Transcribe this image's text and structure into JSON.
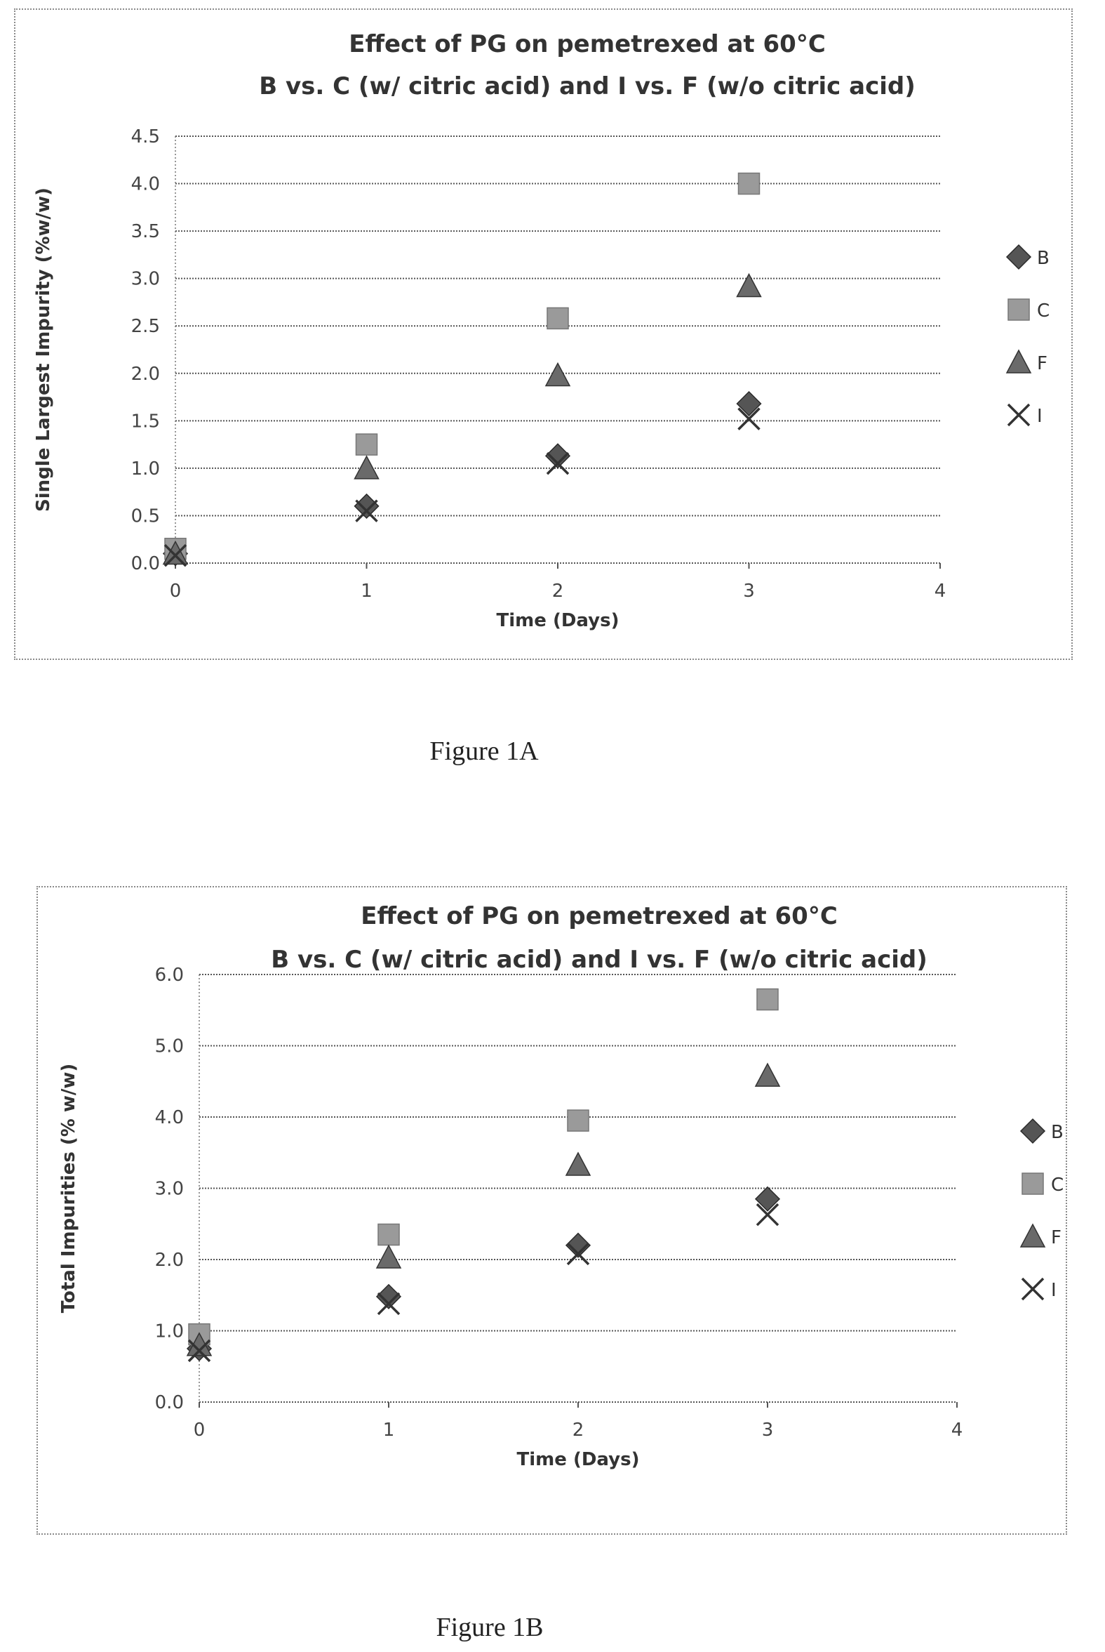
{
  "figures": {
    "a_caption": "Figure 1A",
    "b_caption": "Figure 1B"
  },
  "chart_data": [
    {
      "type": "scatter",
      "title": "Effect of PG on pemetrexed at 60°C",
      "subtitle": "B vs. C (w/ citric acid) and I vs. F (w/o citric acid)",
      "xlabel": "Time (Days)",
      "ylabel": "Single Largest Impurity (%w/w)",
      "xlim": [
        0,
        4
      ],
      "ylim": [
        0.0,
        4.5
      ],
      "x_ticks": [
        "0",
        "1",
        "2",
        "3",
        "4"
      ],
      "y_ticks": [
        "0.0",
        "0.5",
        "1.0",
        "1.5",
        "2.0",
        "2.5",
        "3.0",
        "3.5",
        "4.0",
        "4.5"
      ],
      "grid": true,
      "legend": "right",
      "series": [
        {
          "name": "B",
          "marker": "diamond",
          "color": "#555555",
          "x": [
            0,
            1,
            2,
            3
          ],
          "y": [
            0.1,
            0.6,
            1.13,
            1.68
          ]
        },
        {
          "name": "C",
          "marker": "square",
          "color": "#9a9a9a",
          "x": [
            0,
            1,
            2,
            3
          ],
          "y": [
            0.15,
            1.25,
            2.58,
            4.0
          ]
        },
        {
          "name": "F",
          "marker": "triangle",
          "color": "#6a6a6a",
          "x": [
            0,
            1,
            2,
            3
          ],
          "y": [
            0.1,
            1.0,
            1.98,
            2.92
          ]
        },
        {
          "name": "I",
          "marker": "x",
          "color": "#333333",
          "x": [
            0,
            1,
            2,
            3
          ],
          "y": [
            0.08,
            0.55,
            1.05,
            1.52
          ]
        }
      ]
    },
    {
      "type": "scatter",
      "title": "Effect of PG on pemetrexed at 60°C",
      "subtitle": "B vs. C (w/ citric acid) and I vs. F (w/o citric acid)",
      "xlabel": "Time (Days)",
      "ylabel": "Total Impurities (% w/w)",
      "xlim": [
        0,
        4
      ],
      "ylim": [
        0.0,
        6.0
      ],
      "x_ticks": [
        "0",
        "1",
        "2",
        "3",
        "4"
      ],
      "y_ticks": [
        "0.0",
        "1.0",
        "2.0",
        "3.0",
        "4.0",
        "5.0",
        "6.0"
      ],
      "grid": true,
      "legend": "right",
      "series": [
        {
          "name": "B",
          "marker": "diamond",
          "color": "#555555",
          "x": [
            0,
            1,
            2,
            3
          ],
          "y": [
            0.75,
            1.48,
            2.2,
            2.85
          ]
        },
        {
          "name": "C",
          "marker": "square",
          "color": "#9a9a9a",
          "x": [
            0,
            1,
            2,
            3
          ],
          "y": [
            0.95,
            2.35,
            3.95,
            5.65
          ]
        },
        {
          "name": "F",
          "marker": "triangle",
          "color": "#6a6a6a",
          "x": [
            0,
            1,
            2,
            3
          ],
          "y": [
            0.8,
            2.03,
            3.33,
            4.58
          ]
        },
        {
          "name": "I",
          "marker": "x",
          "color": "#333333",
          "x": [
            0,
            1,
            2,
            3
          ],
          "y": [
            0.72,
            1.38,
            2.08,
            2.63
          ]
        }
      ]
    }
  ]
}
